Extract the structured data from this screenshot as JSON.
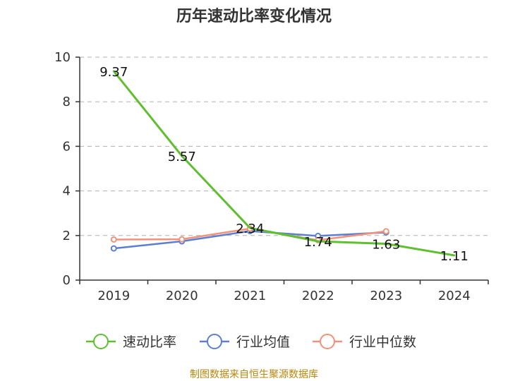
{
  "chart_data": {
    "type": "line",
    "title": "历年速动比率变化情况",
    "categories": [
      "2019",
      "2020",
      "2021",
      "2022",
      "2023",
      "2024"
    ],
    "ylim": [
      0,
      10
    ],
    "yticks": [
      0,
      2,
      4,
      6,
      8,
      10
    ],
    "grid": true,
    "legend_position": "bottom",
    "series": [
      {
        "name": "速动比率",
        "color": "#5fbf2f",
        "values": [
          9.37,
          5.57,
          2.34,
          1.74,
          1.63,
          1.11
        ],
        "labels": [
          "9.37",
          "5.57",
          "2.34",
          "1.74",
          "1.63",
          "1.11"
        ]
      },
      {
        "name": "行业均值",
        "color": "#5b7fd1",
        "values": [
          1.42,
          1.74,
          2.2,
          1.98,
          2.14,
          null
        ]
      },
      {
        "name": "行业中位数",
        "color": "#f0937a",
        "values": [
          1.82,
          1.83,
          2.31,
          1.79,
          2.19,
          null
        ]
      }
    ],
    "source": "制图数据来自恒生聚源数据库"
  }
}
